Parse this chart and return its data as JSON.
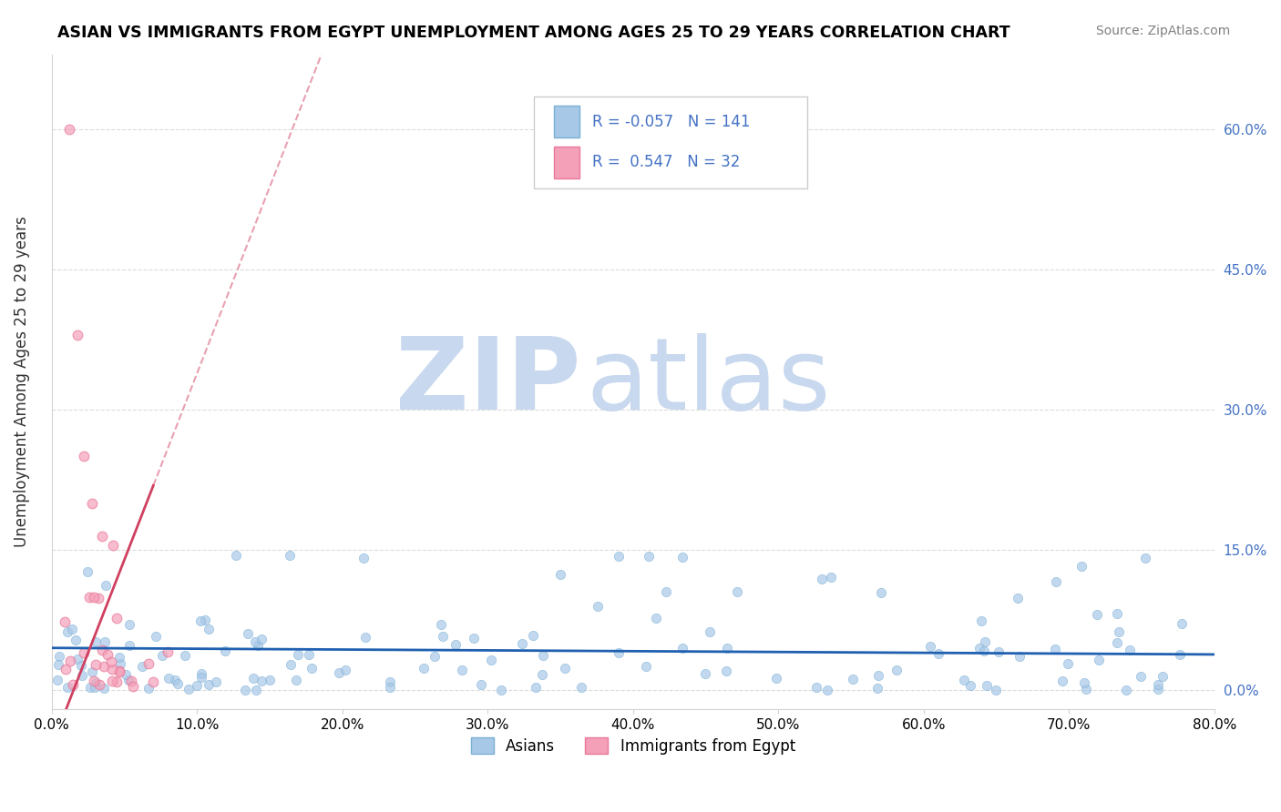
{
  "title": "ASIAN VS IMMIGRANTS FROM EGYPT UNEMPLOYMENT AMONG AGES 25 TO 29 YEARS CORRELATION CHART",
  "source": "Source: ZipAtlas.com",
  "ylabel": "Unemployment Among Ages 25 to 29 years",
  "xlim": [
    0.0,
    0.8
  ],
  "ylim": [
    -0.02,
    0.68
  ],
  "xticks": [
    0.0,
    0.1,
    0.2,
    0.3,
    0.4,
    0.5,
    0.6,
    0.7,
    0.8
  ],
  "xticklabels": [
    "0.0%",
    "10.0%",
    "20.0%",
    "30.0%",
    "40.0%",
    "50.0%",
    "60.0%",
    "70.0%",
    "80.0%"
  ],
  "yticks": [
    0.0,
    0.15,
    0.3,
    0.45,
    0.6
  ],
  "yticklabels": [
    "0.0%",
    "15.0%",
    "30.0%",
    "45.0%",
    "60.0%"
  ],
  "blue_R": -0.057,
  "blue_N": 141,
  "pink_R": 0.547,
  "pink_N": 32,
  "blue_color": "#a8c8e8",
  "blue_edge_color": "#7aafd4",
  "pink_color": "#f4a0b8",
  "pink_edge_color": "#e8789a",
  "blue_line_color": "#2060b0",
  "pink_line_color": "#d04060",
  "pink_dash_color": "#e8a0b0",
  "watermark_zip": "ZIP",
  "watermark_atlas": "atlas",
  "watermark_color": "#c8d8ee",
  "legend_label_blue": "Asians",
  "legend_label_pink": "Immigrants from Egypt",
  "tick_color": "#4472c4",
  "ylabel_color": "#333333"
}
